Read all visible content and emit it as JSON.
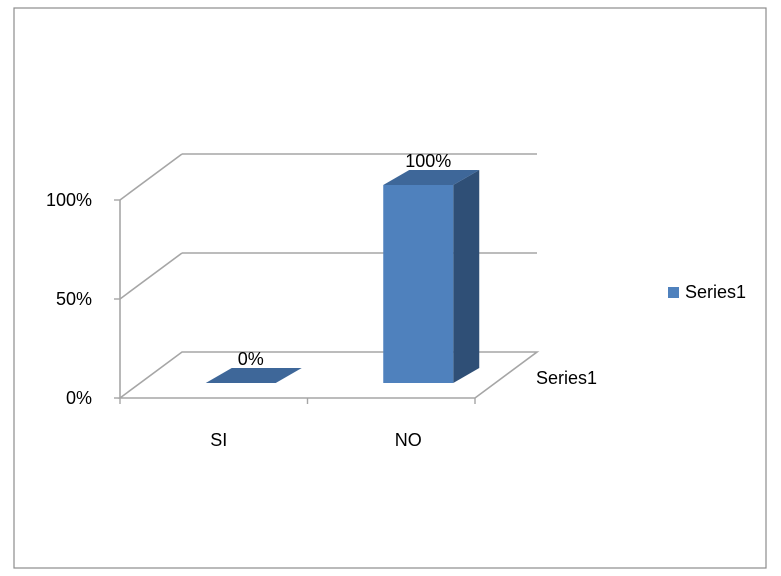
{
  "chart_data": {
    "type": "bar",
    "style": "3d-column",
    "categories": [
      "SI",
      "NO"
    ],
    "series": [
      {
        "name": "Series1",
        "values": [
          0,
          100
        ]
      }
    ],
    "data_labels": [
      "0%",
      "100%"
    ],
    "y_ticks": [
      "0%",
      "50%",
      "100%"
    ],
    "ylim": [
      0,
      100
    ],
    "depth_axis_label": "Series1",
    "grid": true,
    "legend": {
      "position": "right",
      "entries": [
        "Series1"
      ]
    },
    "colors": {
      "bar_front": "#4F81BD",
      "bar_side": "#2F4F76",
      "bar_top": "#3E6799",
      "grid": "#A6A6A6"
    },
    "title": "",
    "xlabel": "",
    "ylabel": ""
  }
}
